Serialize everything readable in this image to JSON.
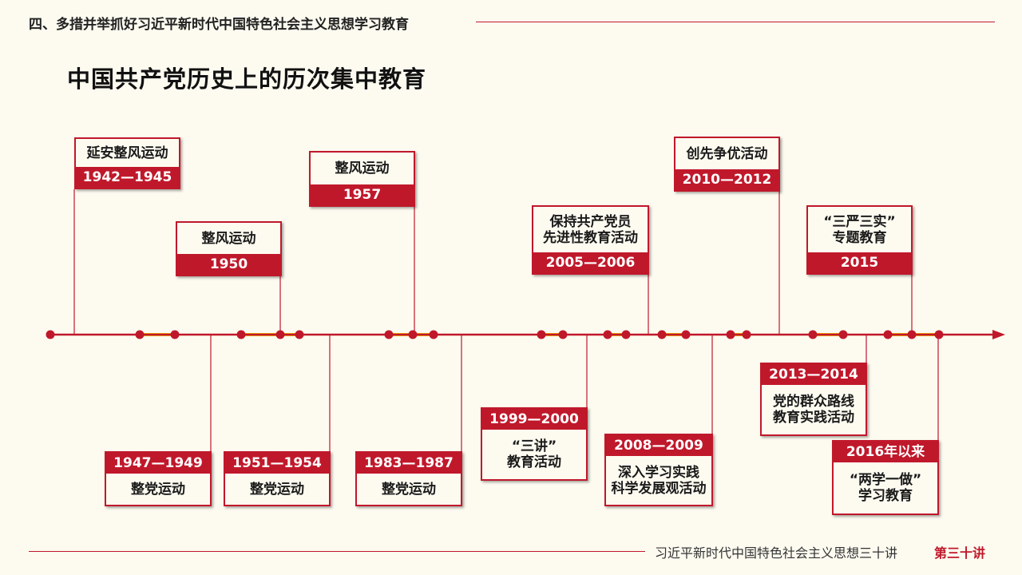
{
  "header": {
    "section_title": "四、多措并举抓好习近平新时代中国特色社会主义思想学习教育",
    "main_title": "中国共产党历史上的历次集中教育"
  },
  "colors": {
    "primary_red": "#c0182b",
    "accent_gold": "#f2b705",
    "background": "#fdfbf0"
  },
  "events": [
    {
      "label": "延安整风运动",
      "date": "1942—1945"
    },
    {
      "label": "整党运动",
      "date": "1947—1949"
    },
    {
      "label": "整风运动",
      "date": "1950"
    },
    {
      "label": "整党运动",
      "date": "1951—1954"
    },
    {
      "label": "整风运动",
      "date": "1957"
    },
    {
      "label": "整党运动",
      "date": "1983—1987"
    },
    {
      "label": "“三讲”\n教育活动",
      "date": "1999—2000"
    },
    {
      "label": "保持共产党员\n先进性教育活动",
      "date": "2005—2006"
    },
    {
      "label": "深入学习实践\n科学发展观活动",
      "date": "2008—2009"
    },
    {
      "label": "创先争优活动",
      "date": "2010—2012"
    },
    {
      "label": "党的群众路线\n教育实践活动",
      "date": "2013—2014"
    },
    {
      "label": "“三严三实”\n专题教育",
      "date": "2015"
    },
    {
      "label": "“两学一做”\n学习教育",
      "date": "2016年以来"
    }
  ],
  "footer": {
    "series": "习近平新时代中国特色社会主义思想三十讲",
    "lecture": "第三十讲"
  }
}
